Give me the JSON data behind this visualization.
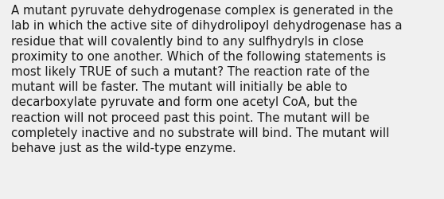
{
  "background_color": "#f0f0f0",
  "text_color": "#1a1a1a",
  "lines": [
    "A mutant pyruvate dehydrogenase complex is generated in the",
    "lab in which the active site of dihydrolipoyl dehydrogenase has a",
    "residue that will covalently bind to any sulfhydryls in close",
    "proximity to one another. Which of the following statements is",
    "most likely TRUE of such a mutant? The reaction rate of the",
    "mutant will be faster. The mutant will initially be able to",
    "decarboxylate pyruvate and form one acetyl CoA, but the",
    "reaction will not proceed past this point. The mutant will be",
    "completely inactive and no substrate will bind. The mutant will",
    "behave just as the wild-type enzyme."
  ],
  "font_size": 10.8,
  "font_family": "DejaVu Sans",
  "fig_width": 5.58,
  "fig_height": 2.51,
  "dpi": 100
}
